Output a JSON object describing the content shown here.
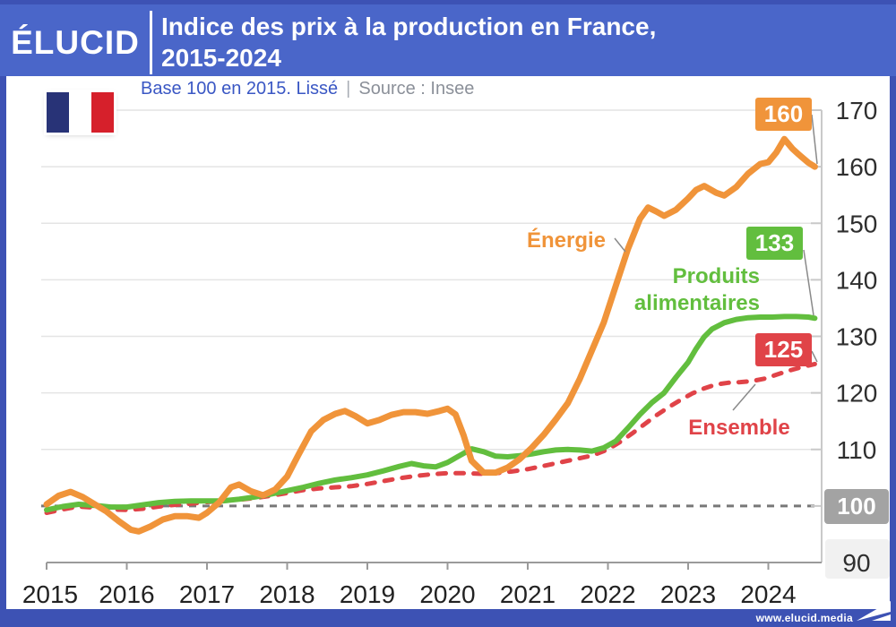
{
  "header": {
    "logo_text": "ÉLUCID",
    "title_line1": "Indice des prix à la production en France,",
    "title_line2": "2015-2024"
  },
  "subheader": {
    "subtitle": "Base 100 en 2015. Lissé",
    "separator": "|",
    "source": "Source : Insee",
    "flag_icon": "france-flag-icon"
  },
  "footer": {
    "url": "www.elucid.media",
    "logo_icon": "paper-plane-icon"
  },
  "colors": {
    "header_blue": "#4A66C9",
    "frame_blue": "#3D52B4",
    "energie_orange": "#F0943A",
    "produits_green": "#62BE3E",
    "ensemble_red": "#E04348",
    "baseline_badge_gray": "#A3A3A3",
    "subtitle_blue": "#3A57C4",
    "source_gray": "#8B9099",
    "gridline_gray": "#E4E4E4",
    "axis_gray": "#9A9A9A"
  },
  "chart_data": {
    "type": "line",
    "title": "Indice des prix à la production en France, 2015-2024",
    "subtitle": "Base 100 en 2015. Lissé",
    "source": "Source : Insee",
    "xlabel": "",
    "ylabel": "",
    "xlim": [
      2015,
      2024.67
    ],
    "ylim": [
      90,
      170
    ],
    "x_ticks": [
      2015,
      2016,
      2017,
      2018,
      2019,
      2020,
      2021,
      2022,
      2023,
      2024
    ],
    "y_ticks": [
      90,
      100,
      110,
      120,
      130,
      140,
      150,
      160,
      170
    ],
    "grid": "horizontal",
    "legend_position": "inline-labels",
    "baseline": 100,
    "baseline_label": "100",
    "series": [
      {
        "name": "Énergie",
        "color": "#F0943A",
        "line_style": "solid",
        "end_label": "160",
        "points": [
          [
            2015.0,
            100.3
          ],
          [
            2015.15,
            101.8
          ],
          [
            2015.3,
            102.5
          ],
          [
            2015.45,
            101.6
          ],
          [
            2015.6,
            100.3
          ],
          [
            2015.75,
            99.0
          ],
          [
            2015.9,
            97.3
          ],
          [
            2016.05,
            95.8
          ],
          [
            2016.15,
            95.5
          ],
          [
            2016.3,
            96.4
          ],
          [
            2016.45,
            97.6
          ],
          [
            2016.6,
            98.2
          ],
          [
            2016.75,
            98.2
          ],
          [
            2016.9,
            97.9
          ],
          [
            2017.0,
            98.8
          ],
          [
            2017.15,
            100.6
          ],
          [
            2017.3,
            103.3
          ],
          [
            2017.4,
            103.8
          ],
          [
            2017.55,
            102.6
          ],
          [
            2017.7,
            101.9
          ],
          [
            2017.85,
            102.9
          ],
          [
            2018.0,
            105.2
          ],
          [
            2018.15,
            109.3
          ],
          [
            2018.3,
            113.2
          ],
          [
            2018.45,
            115.2
          ],
          [
            2018.6,
            116.3
          ],
          [
            2018.72,
            116.8
          ],
          [
            2018.85,
            115.9
          ],
          [
            2019.0,
            114.6
          ],
          [
            2019.15,
            115.2
          ],
          [
            2019.3,
            116.1
          ],
          [
            2019.45,
            116.6
          ],
          [
            2019.6,
            116.6
          ],
          [
            2019.75,
            116.3
          ],
          [
            2019.9,
            116.8
          ],
          [
            2020.0,
            117.2
          ],
          [
            2020.1,
            116.2
          ],
          [
            2020.2,
            112.5
          ],
          [
            2020.3,
            108.0
          ],
          [
            2020.45,
            105.9
          ],
          [
            2020.6,
            105.9
          ],
          [
            2020.75,
            106.8
          ],
          [
            2020.9,
            108.3
          ],
          [
            2021.05,
            110.3
          ],
          [
            2021.2,
            112.6
          ],
          [
            2021.35,
            115.3
          ],
          [
            2021.5,
            118.2
          ],
          [
            2021.65,
            122.5
          ],
          [
            2021.8,
            127.5
          ],
          [
            2021.95,
            132.5
          ],
          [
            2022.1,
            139.0
          ],
          [
            2022.25,
            145.5
          ],
          [
            2022.4,
            150.8
          ],
          [
            2022.5,
            152.8
          ],
          [
            2022.6,
            152.1
          ],
          [
            2022.7,
            151.3
          ],
          [
            2022.85,
            152.4
          ],
          [
            2023.0,
            154.4
          ],
          [
            2023.1,
            155.9
          ],
          [
            2023.2,
            156.6
          ],
          [
            2023.35,
            155.4
          ],
          [
            2023.45,
            154.9
          ],
          [
            2023.6,
            156.4
          ],
          [
            2023.75,
            158.8
          ],
          [
            2023.9,
            160.5
          ],
          [
            2024.0,
            160.8
          ],
          [
            2024.1,
            162.5
          ],
          [
            2024.2,
            164.9
          ],
          [
            2024.3,
            163.2
          ],
          [
            2024.4,
            161.9
          ],
          [
            2024.5,
            160.7
          ],
          [
            2024.58,
            160.0
          ]
        ]
      },
      {
        "name": "Produits alimentaires",
        "color": "#62BE3E",
        "line_style": "solid",
        "end_label": "133",
        "points": [
          [
            2015.0,
            99.3
          ],
          [
            2015.2,
            99.9
          ],
          [
            2015.4,
            100.3
          ],
          [
            2015.6,
            100.1
          ],
          [
            2015.8,
            99.8
          ],
          [
            2016.0,
            99.8
          ],
          [
            2016.2,
            100.2
          ],
          [
            2016.4,
            100.6
          ],
          [
            2016.6,
            100.8
          ],
          [
            2016.8,
            100.9
          ],
          [
            2017.0,
            100.9
          ],
          [
            2017.2,
            100.9
          ],
          [
            2017.4,
            101.2
          ],
          [
            2017.6,
            101.6
          ],
          [
            2017.8,
            102.1
          ],
          [
            2018.0,
            102.7
          ],
          [
            2018.2,
            103.3
          ],
          [
            2018.4,
            104.0
          ],
          [
            2018.6,
            104.6
          ],
          [
            2018.8,
            105.0
          ],
          [
            2019.0,
            105.5
          ],
          [
            2019.2,
            106.2
          ],
          [
            2019.4,
            107.0
          ],
          [
            2019.55,
            107.5
          ],
          [
            2019.7,
            107.1
          ],
          [
            2019.85,
            106.9
          ],
          [
            2020.0,
            107.7
          ],
          [
            2020.15,
            108.9
          ],
          [
            2020.3,
            110.1
          ],
          [
            2020.45,
            109.6
          ],
          [
            2020.6,
            108.8
          ],
          [
            2020.75,
            108.7
          ],
          [
            2020.9,
            108.9
          ],
          [
            2021.05,
            109.2
          ],
          [
            2021.2,
            109.6
          ],
          [
            2021.35,
            109.9
          ],
          [
            2021.5,
            110.0
          ],
          [
            2021.65,
            109.9
          ],
          [
            2021.8,
            109.7
          ],
          [
            2021.95,
            110.3
          ],
          [
            2022.1,
            111.5
          ],
          [
            2022.25,
            113.8
          ],
          [
            2022.4,
            116.2
          ],
          [
            2022.55,
            118.3
          ],
          [
            2022.7,
            120.0
          ],
          [
            2022.85,
            122.8
          ],
          [
            2023.0,
            125.4
          ],
          [
            2023.1,
            127.8
          ],
          [
            2023.2,
            129.9
          ],
          [
            2023.3,
            131.3
          ],
          [
            2023.45,
            132.4
          ],
          [
            2023.6,
            133.0
          ],
          [
            2023.75,
            133.3
          ],
          [
            2023.9,
            133.4
          ],
          [
            2024.05,
            133.4
          ],
          [
            2024.2,
            133.5
          ],
          [
            2024.35,
            133.5
          ],
          [
            2024.5,
            133.4
          ],
          [
            2024.58,
            133.2
          ]
        ]
      },
      {
        "name": "Ensemble",
        "color": "#E04348",
        "line_style": "dashed",
        "end_label": "125",
        "points": [
          [
            2015.0,
            98.8
          ],
          [
            2015.2,
            99.4
          ],
          [
            2015.4,
            99.9
          ],
          [
            2015.6,
            99.7
          ],
          [
            2015.8,
            99.4
          ],
          [
            2016.0,
            99.3
          ],
          [
            2016.2,
            99.5
          ],
          [
            2016.4,
            99.9
          ],
          [
            2016.6,
            100.2
          ],
          [
            2016.8,
            100.4
          ],
          [
            2017.0,
            100.7
          ],
          [
            2017.2,
            100.9
          ],
          [
            2017.4,
            101.1
          ],
          [
            2017.6,
            101.4
          ],
          [
            2017.8,
            101.8
          ],
          [
            2018.0,
            102.3
          ],
          [
            2018.2,
            102.8
          ],
          [
            2018.4,
            103.1
          ],
          [
            2018.6,
            103.3
          ],
          [
            2018.8,
            103.5
          ],
          [
            2019.0,
            103.9
          ],
          [
            2019.2,
            104.4
          ],
          [
            2019.4,
            104.9
          ],
          [
            2019.6,
            105.3
          ],
          [
            2019.8,
            105.6
          ],
          [
            2020.0,
            105.8
          ],
          [
            2020.2,
            105.8
          ],
          [
            2020.4,
            105.7
          ],
          [
            2020.6,
            105.8
          ],
          [
            2020.8,
            106.1
          ],
          [
            2021.0,
            106.5
          ],
          [
            2021.2,
            107.1
          ],
          [
            2021.4,
            107.7
          ],
          [
            2021.6,
            108.3
          ],
          [
            2021.8,
            108.9
          ],
          [
            2022.0,
            110.0
          ],
          [
            2022.15,
            111.3
          ],
          [
            2022.3,
            112.8
          ],
          [
            2022.45,
            114.4
          ],
          [
            2022.6,
            116.0
          ],
          [
            2022.75,
            117.4
          ],
          [
            2022.9,
            118.7
          ],
          [
            2023.05,
            119.9
          ],
          [
            2023.2,
            120.8
          ],
          [
            2023.35,
            121.5
          ],
          [
            2023.5,
            121.8
          ],
          [
            2023.65,
            121.9
          ],
          [
            2023.8,
            122.1
          ],
          [
            2023.95,
            122.5
          ],
          [
            2024.1,
            123.2
          ],
          [
            2024.25,
            123.9
          ],
          [
            2024.4,
            124.5
          ],
          [
            2024.58,
            125.1
          ]
        ]
      }
    ]
  }
}
